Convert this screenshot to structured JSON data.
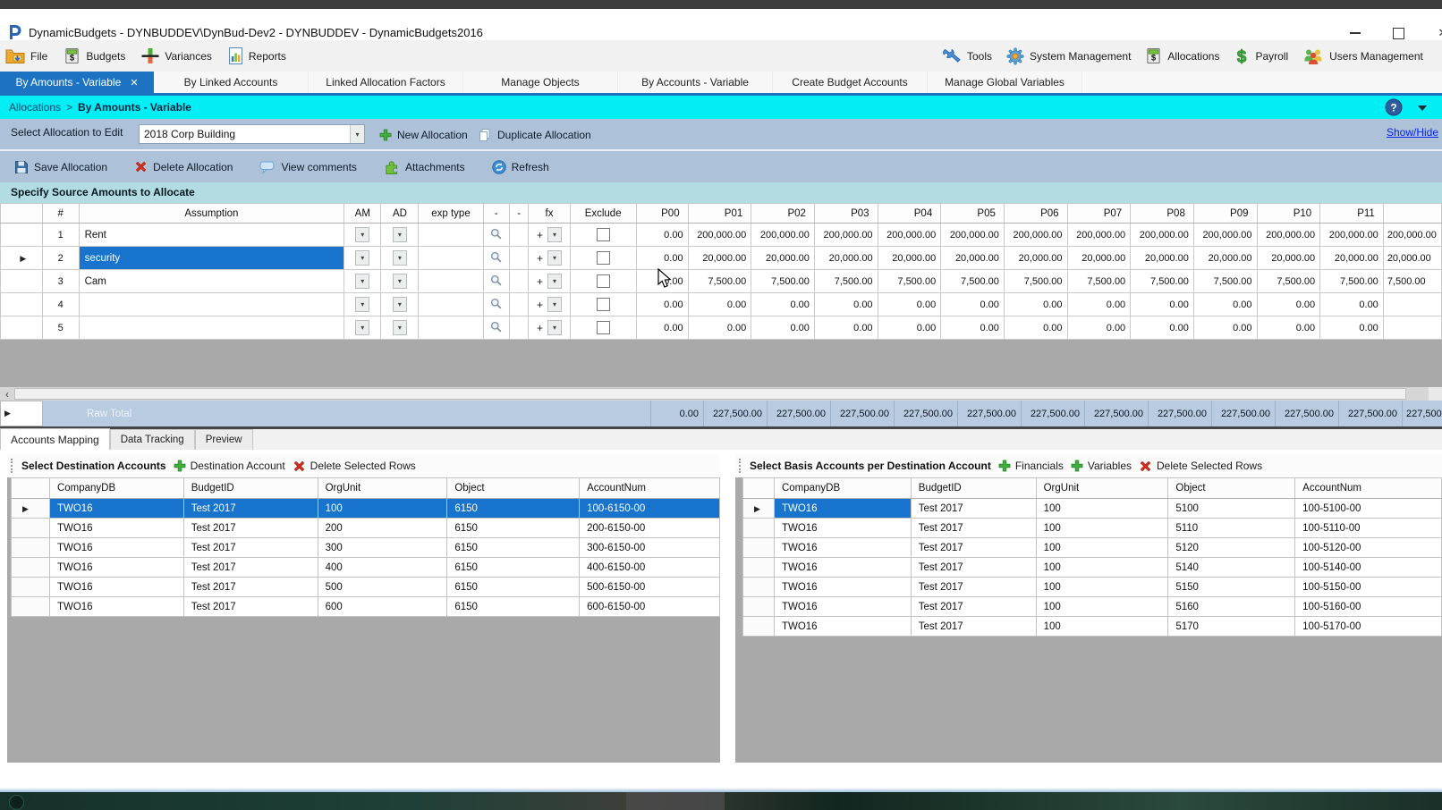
{
  "window": {
    "title": "DynamicBudgets - DYNBUDDEV\\DynBud-Dev2 - DYNBUDDEV - DynamicBudgets2016",
    "controls": [
      "minimize-icon",
      "maximize-icon",
      "close-icon"
    ]
  },
  "menubar": {
    "left": [
      {
        "icon": "file-folder-icon",
        "label": "File"
      },
      {
        "icon": "budgets-calculator-icon",
        "label": "Budgets"
      },
      {
        "icon": "variances-chart-icon",
        "label": "Variances"
      },
      {
        "icon": "reports-chart-icon",
        "label": "Reports"
      }
    ],
    "right": [
      {
        "icon": "tools-wrench-icon",
        "label": "Tools"
      },
      {
        "icon": "system-gear-icon",
        "label": "System Management"
      },
      {
        "icon": "allocations-calculator-icon",
        "label": "Allocations"
      },
      {
        "icon": "payroll-dollar-icon",
        "label": "Payroll"
      },
      {
        "icon": "users-people-icon",
        "label": "Users Management"
      }
    ]
  },
  "tabs": [
    {
      "label": "By Amounts - Variable",
      "active": true,
      "closable": true
    },
    {
      "label": "By Linked Accounts",
      "active": false
    },
    {
      "label": "Linked Allocation Factors",
      "active": false
    },
    {
      "label": "Manage Objects",
      "active": false
    },
    {
      "label": "By Accounts - Variable",
      "active": false
    },
    {
      "label": "Create Budget Accounts",
      "active": false
    },
    {
      "label": "Manage Global Variables",
      "active": false
    }
  ],
  "breadcrumb": {
    "parent": "Allocations",
    "separator": ">",
    "current": "By Amounts - Variable"
  },
  "allocation_bar": {
    "label": "Select Allocation to Edit",
    "selected_allocation": "2018 Corp Building",
    "new_button": "New Allocation",
    "duplicate_button": "Duplicate Allocation",
    "show_hide_link": "Show/Hide"
  },
  "action_bar": [
    {
      "icon": "save-icon",
      "label": "Save Allocation"
    },
    {
      "icon": "delete-x-icon",
      "label": "Delete Allocation"
    },
    {
      "icon": "comments-icon",
      "label": "View comments"
    },
    {
      "icon": "attachments-icon",
      "label": "Attachments"
    },
    {
      "icon": "refresh-icon",
      "label": "Refresh"
    }
  ],
  "source_section": {
    "title": "Specify Source Amounts to Allocate"
  },
  "source_grid": {
    "fixed_columns": [
      "#",
      "Assumption",
      "AM",
      "AD",
      "exp type",
      "-",
      "-",
      "fx",
      "Exclude"
    ],
    "period_columns": [
      "P00",
      "P01",
      "P02",
      "P03",
      "P04",
      "P05",
      "P06",
      "P07",
      "P08",
      "P09",
      "P10",
      "P11"
    ],
    "rows": [
      {
        "num": "1",
        "assumption": "Rent",
        "selected": false,
        "p_values": [
          "0.00",
          "200,000.00",
          "200,000.00",
          "200,000.00",
          "200,000.00",
          "200,000.00",
          "200,000.00",
          "200,000.00",
          "200,000.00",
          "200,000.00",
          "200,000.00",
          "200,000.00"
        ],
        "clipped_value": "200,000.00"
      },
      {
        "num": "2",
        "assumption": "security",
        "selected": true,
        "p_values": [
          "0.00",
          "20,000.00",
          "20,000.00",
          "20,000.00",
          "20,000.00",
          "20,000.00",
          "20,000.00",
          "20,000.00",
          "20,000.00",
          "20,000.00",
          "20,000.00",
          "20,000.00"
        ],
        "clipped_value": "20,000.00"
      },
      {
        "num": "3",
        "assumption": "Cam",
        "selected": false,
        "p_values": [
          "0.00",
          "7,500.00",
          "7,500.00",
          "7,500.00",
          "7,500.00",
          "7,500.00",
          "7,500.00",
          "7,500.00",
          "7,500.00",
          "7,500.00",
          "7,500.00",
          "7,500.00"
        ],
        "clipped_value": "7,500.00"
      },
      {
        "num": "4",
        "assumption": "",
        "selected": false,
        "p_values": [
          "0.00",
          "0.00",
          "0.00",
          "0.00",
          "0.00",
          "0.00",
          "0.00",
          "0.00",
          "0.00",
          "0.00",
          "0.00",
          "0.00"
        ],
        "clipped_value": ""
      },
      {
        "num": "5",
        "assumption": "",
        "selected": false,
        "p_values": [
          "0.00",
          "0.00",
          "0.00",
          "0.00",
          "0.00",
          "0.00",
          "0.00",
          "0.00",
          "0.00",
          "0.00",
          "0.00",
          "0.00"
        ],
        "clipped_value": ""
      }
    ],
    "raw_total": {
      "label": "Raw Total",
      "p_values": [
        "0.00",
        "227,500.00",
        "227,500.00",
        "227,500.00",
        "227,500.00",
        "227,500.00",
        "227,500.00",
        "227,500.00",
        "227,500.00",
        "227,500.00",
        "227,500.00",
        "227,500.00"
      ],
      "clipped_value": "227,500.00"
    }
  },
  "bottom_tabs": [
    {
      "label": "Accounts Mapping",
      "active": true
    },
    {
      "label": "Data Tracking",
      "active": false
    },
    {
      "label": "Preview",
      "active": false
    }
  ],
  "destination_panel": {
    "title": "Select Destination Accounts",
    "buttons": [
      {
        "icon": "plus-icon",
        "label": "Destination Account"
      },
      {
        "icon": "delete-x-icon",
        "label": "Delete Selected Rows"
      }
    ],
    "columns": [
      "CompanyDB",
      "BudgetID",
      "OrgUnit",
      "Object",
      "AccountNum"
    ],
    "rows": [
      [
        "TWO16",
        "Test 2017",
        "100",
        "6150",
        "100-6150-00"
      ],
      [
        "TWO16",
        "Test 2017",
        "200",
        "6150",
        "200-6150-00"
      ],
      [
        "TWO16",
        "Test 2017",
        "300",
        "6150",
        "300-6150-00"
      ],
      [
        "TWO16",
        "Test 2017",
        "400",
        "6150",
        "400-6150-00"
      ],
      [
        "TWO16",
        "Test 2017",
        "500",
        "6150",
        "500-6150-00"
      ],
      [
        "TWO16",
        "Test 2017",
        "600",
        "6150",
        "600-6150-00"
      ]
    ],
    "selected_row": 0,
    "selection_mode": "row"
  },
  "basis_panel": {
    "title": "Select Basis Accounts per Destination Account",
    "buttons": [
      {
        "icon": "plus-icon",
        "label": "Financials"
      },
      {
        "icon": "plus-icon",
        "label": "Variables"
      },
      {
        "icon": "delete-x-icon",
        "label": "Delete Selected Rows"
      }
    ],
    "columns": [
      "CompanyDB",
      "BudgetID",
      "OrgUnit",
      "Object",
      "AccountNum"
    ],
    "rows": [
      [
        "TWO16",
        "Test 2017",
        "100",
        "5100",
        "100-5100-00"
      ],
      [
        "TWO16",
        "Test 2017",
        "100",
        "5110",
        "100-5110-00"
      ],
      [
        "TWO16",
        "Test 2017",
        "100",
        "5120",
        "100-5120-00"
      ],
      [
        "TWO16",
        "Test 2017",
        "100",
        "5140",
        "100-5140-00"
      ],
      [
        "TWO16",
        "Test 2017",
        "100",
        "5150",
        "100-5150-00"
      ],
      [
        "TWO16",
        "Test 2017",
        "100",
        "5160",
        "100-5160-00"
      ],
      [
        "TWO16",
        "Test 2017",
        "100",
        "5170",
        "100-5170-00"
      ]
    ],
    "selected_row": 0,
    "selection_mode": "cell"
  },
  "colors": {
    "accent_blue": "#1b73c2",
    "breadcrumb_cyan": "#00eef4",
    "bar_blue_gray": "#adc2d8",
    "section_teal": "#b2dbe2",
    "selection_blue": "#1874cc",
    "raw_total_blue": "#b8cbe0",
    "filler_gray": "#a9a9a9"
  }
}
